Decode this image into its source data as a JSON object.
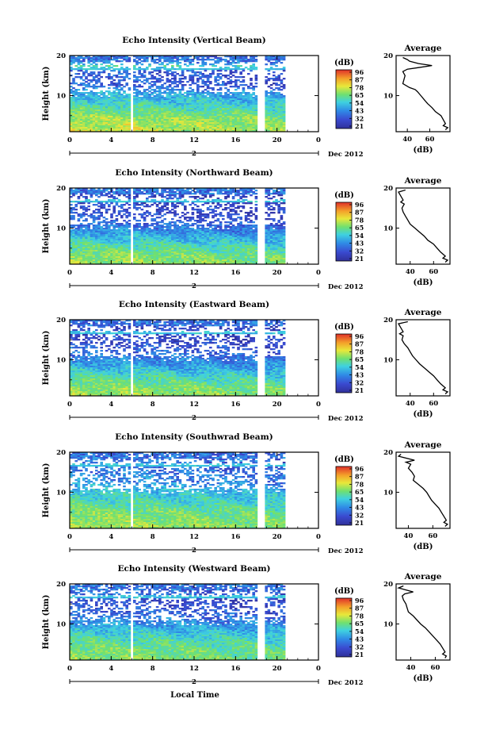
{
  "panels": [
    {
      "title": "Echo Intensity (Vertical Beam)",
      "profile": [
        [
          19.5,
          36
        ],
        [
          19,
          40
        ],
        [
          18.6,
          42
        ],
        [
          18,
          50
        ],
        [
          17.5,
          62
        ],
        [
          17,
          50
        ],
        [
          16.6,
          40
        ],
        [
          16,
          36
        ],
        [
          15,
          38
        ],
        [
          14,
          37
        ],
        [
          13,
          36
        ],
        [
          12,
          42
        ],
        [
          11.5,
          47
        ],
        [
          11,
          49
        ],
        [
          10,
          52
        ],
        [
          9,
          55
        ],
        [
          8,
          58
        ],
        [
          7,
          62
        ],
        [
          6,
          65
        ],
        [
          5,
          70
        ],
        [
          4,
          72
        ],
        [
          3,
          74
        ],
        [
          2.5,
          72
        ],
        [
          2,
          76
        ],
        [
          1.5,
          74
        ]
      ],
      "avg_xlim": [
        30,
        78
      ],
      "avg_ticks": [
        40,
        60
      ]
    },
    {
      "title": "Echo Intensity (Northward Beam)",
      "profile": [
        [
          19.5,
          36
        ],
        [
          19,
          30
        ],
        [
          18,
          32
        ],
        [
          17,
          34
        ],
        [
          16.5,
          32
        ],
        [
          16,
          35
        ],
        [
          15,
          33
        ],
        [
          14,
          34
        ],
        [
          13,
          36
        ],
        [
          12,
          38
        ],
        [
          11,
          40
        ],
        [
          10,
          44
        ],
        [
          9,
          48
        ],
        [
          8,
          52
        ],
        [
          7,
          55
        ],
        [
          6,
          60
        ],
        [
          5,
          63
        ],
        [
          4,
          66
        ],
        [
          3,
          70
        ],
        [
          2.5,
          68
        ],
        [
          2,
          72
        ],
        [
          1.5,
          70
        ]
      ],
      "avg_xlim": [
        28,
        74
      ],
      "avg_ticks": [
        40,
        60
      ]
    },
    {
      "title": "Echo Intensity (Eastward Beam)",
      "profile": [
        [
          19.5,
          38
        ],
        [
          19,
          30
        ],
        [
          18,
          32
        ],
        [
          17,
          34
        ],
        [
          16.5,
          31
        ],
        [
          16,
          34
        ],
        [
          15,
          33
        ],
        [
          14,
          35
        ],
        [
          13,
          38
        ],
        [
          12,
          40
        ],
        [
          11,
          42
        ],
        [
          10,
          45
        ],
        [
          9,
          48
        ],
        [
          8,
          52
        ],
        [
          7,
          56
        ],
        [
          6,
          60
        ],
        [
          5,
          63
        ],
        [
          4,
          66
        ],
        [
          3,
          70
        ],
        [
          2.5,
          68
        ],
        [
          2,
          72
        ],
        [
          1.5,
          70
        ]
      ],
      "avg_xlim": [
        28,
        74
      ],
      "avg_ticks": [
        40,
        60
      ]
    },
    {
      "title": "Echo Intensity (Southwrad Beam)",
      "profile": [
        [
          19.5,
          34
        ],
        [
          19,
          32
        ],
        [
          18,
          45
        ],
        [
          17.5,
          38
        ],
        [
          17,
          42
        ],
        [
          16,
          40
        ],
        [
          15,
          43
        ],
        [
          14,
          45
        ],
        [
          13,
          44
        ],
        [
          12,
          48
        ],
        [
          11,
          52
        ],
        [
          10,
          55
        ],
        [
          9,
          57
        ],
        [
          8,
          59
        ],
        [
          7,
          62
        ],
        [
          6,
          65
        ],
        [
          5,
          67
        ],
        [
          4,
          69
        ],
        [
          3,
          71
        ],
        [
          2.5,
          69
        ],
        [
          2,
          72
        ],
        [
          1.5,
          70
        ]
      ],
      "avg_xlim": [
        30,
        74
      ],
      "avg_ticks": [
        40,
        60
      ]
    },
    {
      "title": "Echo Intensity (Westward Beam)",
      "profile": [
        [
          19.5,
          34
        ],
        [
          19,
          30
        ],
        [
          18,
          42
        ],
        [
          17.5,
          35
        ],
        [
          17,
          33
        ],
        [
          16,
          34
        ],
        [
          15,
          36
        ],
        [
          14,
          37
        ],
        [
          13,
          38
        ],
        [
          12,
          42
        ],
        [
          11,
          45
        ],
        [
          10,
          48
        ],
        [
          9,
          52
        ],
        [
          8,
          55
        ],
        [
          7,
          58
        ],
        [
          6,
          61
        ],
        [
          5,
          64
        ],
        [
          4,
          66
        ],
        [
          3,
          68
        ],
        [
          2.5,
          66
        ],
        [
          2,
          69
        ],
        [
          1.5,
          68
        ]
      ],
      "avg_xlim": [
        28,
        72
      ],
      "avg_ticks": [
        40,
        60
      ]
    }
  ],
  "x_ticks": [
    "0",
    "4",
    "8",
    "12",
    "16",
    "20",
    "0"
  ],
  "y_ticks": [
    "20",
    "10"
  ],
  "ylabel": "Height (km)",
  "unit": "(dB)",
  "colorbar_ticks": [
    "96",
    "87",
    "78",
    "65",
    "54",
    "43",
    "32",
    "21"
  ],
  "day_label": "2",
  "month_label": "Dec 2012",
  "avg_title": "Average",
  "xlabel": "Local Time",
  "chart_data": {
    "type": "heatmap",
    "x_range_hours": [
      0,
      24
    ],
    "y_range_km": [
      1,
      20
    ],
    "colorbar_range_db": [
      21,
      96
    ],
    "data_gaps_hours": [
      [
        5.7,
        6.0
      ],
      [
        18.0,
        18.6
      ],
      [
        20.6,
        21.3
      ]
    ],
    "panels": [
      "Vertical Beam",
      "Northward Beam",
      "Eastward Beam",
      "Southward Beam",
      "Westward Beam"
    ]
  }
}
